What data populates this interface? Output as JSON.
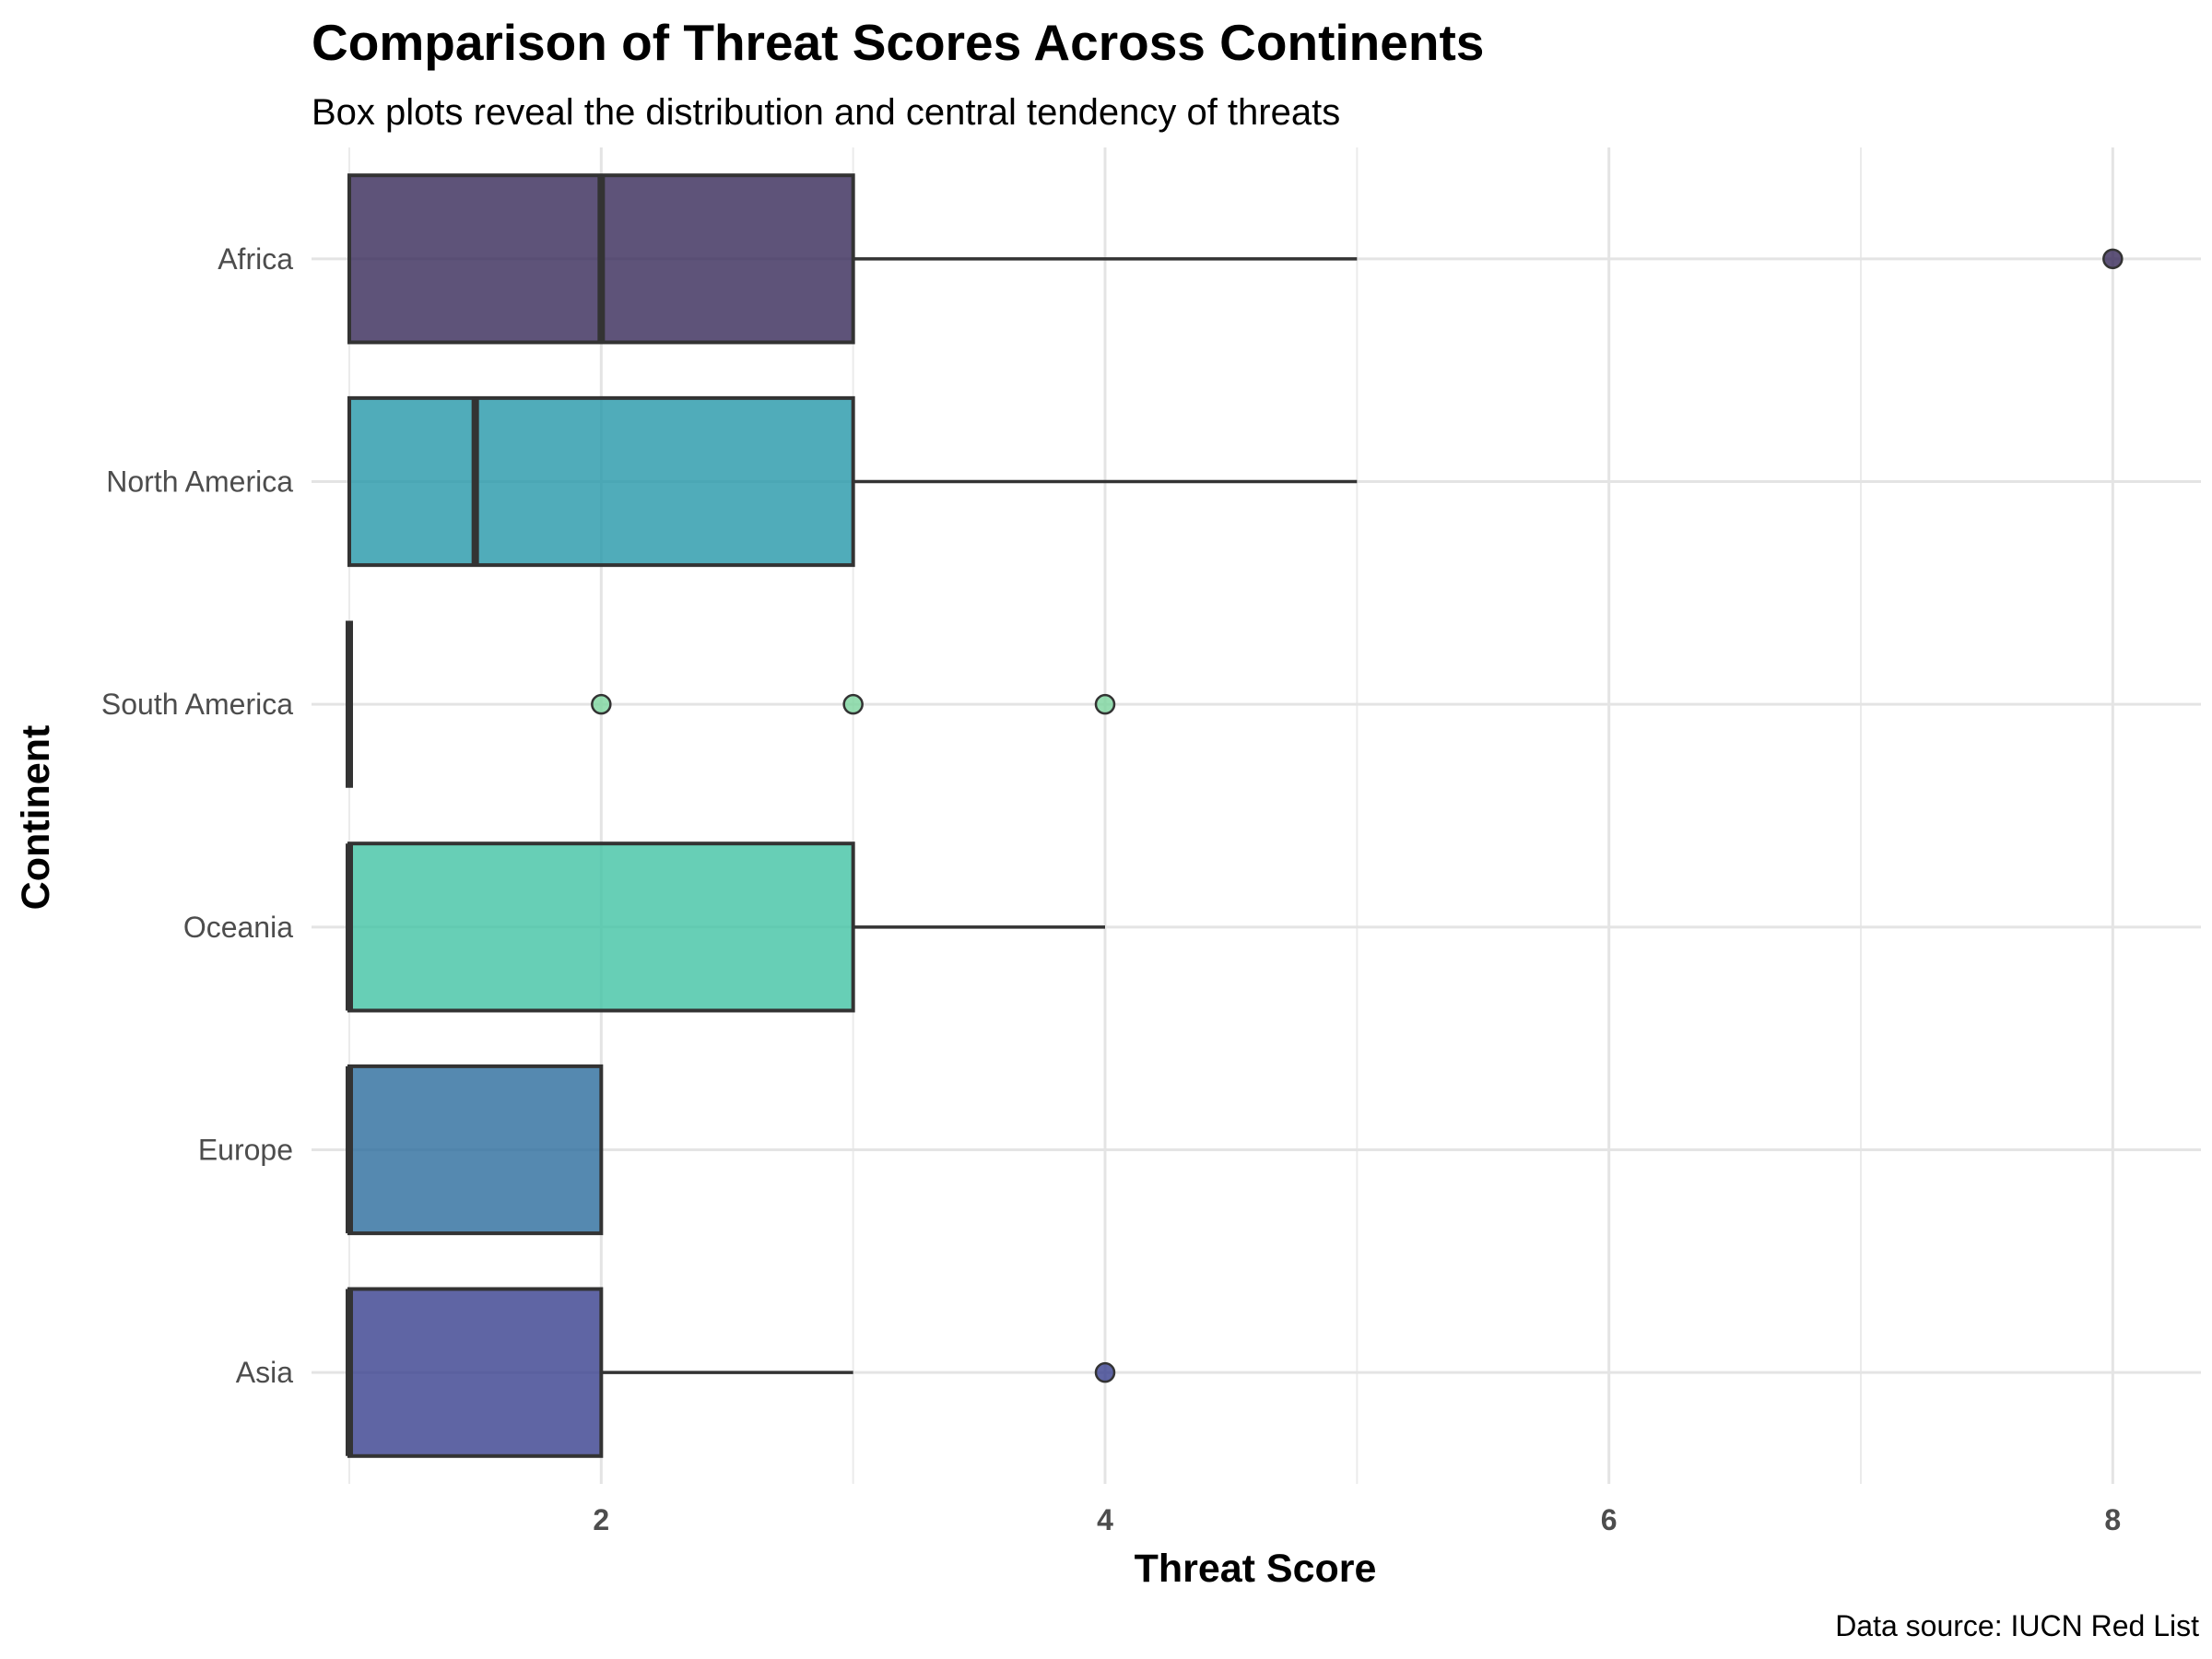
{
  "chart_data": {
    "type": "boxplot",
    "orientation": "horizontal",
    "title": "Comparison of Threat Scores Across Continents",
    "subtitle": "Box plots reveal the distribution and central tendency of threats",
    "xlabel": "Threat Score",
    "ylabel": "Continent",
    "caption": "Data source: IUCN Red List",
    "xlim": [
      0.85,
      8.35
    ],
    "x_ticks": [
      2,
      4,
      6,
      8
    ],
    "grid": true,
    "legend": "none",
    "categories": [
      "Africa",
      "North America",
      "South America",
      "Oceania",
      "Europe",
      "Asia"
    ],
    "series": [
      {
        "category": "Africa",
        "color": "#3b2d5c",
        "min": 1,
        "q1": 1,
        "median": 2,
        "q3": 3,
        "max": 5,
        "outliers": [
          8
        ]
      },
      {
        "category": "North America",
        "color": "#2a9aab",
        "min": 1,
        "q1": 1,
        "median": 1.5,
        "q3": 3,
        "max": 5,
        "outliers": []
      },
      {
        "category": "South America",
        "color": "#7fd6a0",
        "min": 1,
        "q1": 1,
        "median": 1,
        "q3": 1,
        "max": 1,
        "outliers": [
          2,
          3,
          4
        ]
      },
      {
        "category": "Oceania",
        "color": "#45c4a6",
        "min": 1,
        "q1": 1,
        "median": 1,
        "q3": 3,
        "max": 4,
        "outliers": []
      },
      {
        "category": "Europe",
        "color": "#2f6f9f",
        "min": 1,
        "q1": 1,
        "median": 1,
        "q3": 2,
        "max": 2,
        "outliers": []
      },
      {
        "category": "Asia",
        "color": "#3c4390",
        "min": 1,
        "q1": 1,
        "median": 1,
        "q3": 2,
        "max": 3,
        "outliers": [
          4
        ]
      }
    ]
  }
}
